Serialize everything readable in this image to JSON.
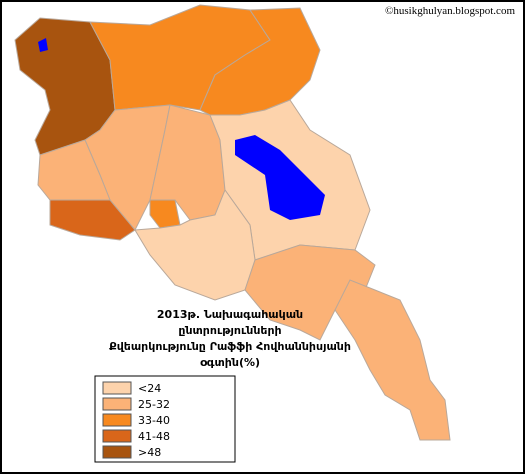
{
  "watermark": "©husikghulyan.blogspot.com",
  "title": {
    "lines": [
      "2013թ. Նախագահական",
      "ընտրությունների",
      "Քվեարկությունը Րաֆֆի Հովհաննիսյանի",
      "օգտին(%)"
    ]
  },
  "legend": {
    "items": [
      {
        "label": "<24",
        "color": "#fdd3ac"
      },
      {
        "label": "25-32",
        "color": "#fbb277"
      },
      {
        "label": "33-40",
        "color": "#f7891f"
      },
      {
        "label": "41-48",
        "color": "#d9661a"
      },
      {
        "label": ">48",
        "color": "#a8540f"
      }
    ]
  }
}
